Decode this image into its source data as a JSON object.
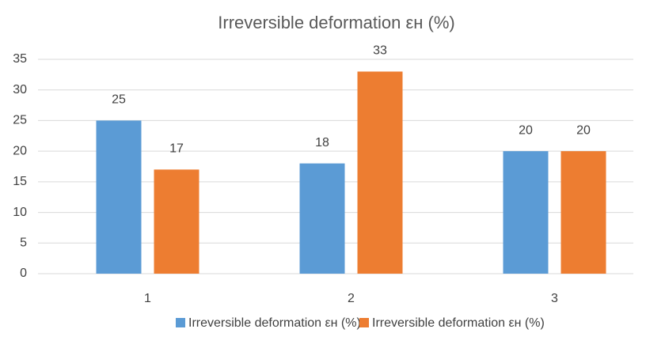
{
  "chart_data": {
    "type": "bar",
    "title": "Irreversible deformation εн (%)",
    "categories": [
      "1",
      "2",
      "3"
    ],
    "series": [
      {
        "name": "Irreversible deformation εн (%)",
        "color": "#5b9bd5",
        "values": [
          25,
          18,
          20
        ]
      },
      {
        "name": "Irreversible deformation εн (%)",
        "color": "#ed7d31",
        "values": [
          17,
          33,
          20
        ]
      }
    ],
    "ylim": [
      0,
      35
    ],
    "yticks": [
      0,
      5,
      10,
      15,
      20,
      25,
      30,
      35
    ],
    "grid": true,
    "legend": "bottom"
  }
}
